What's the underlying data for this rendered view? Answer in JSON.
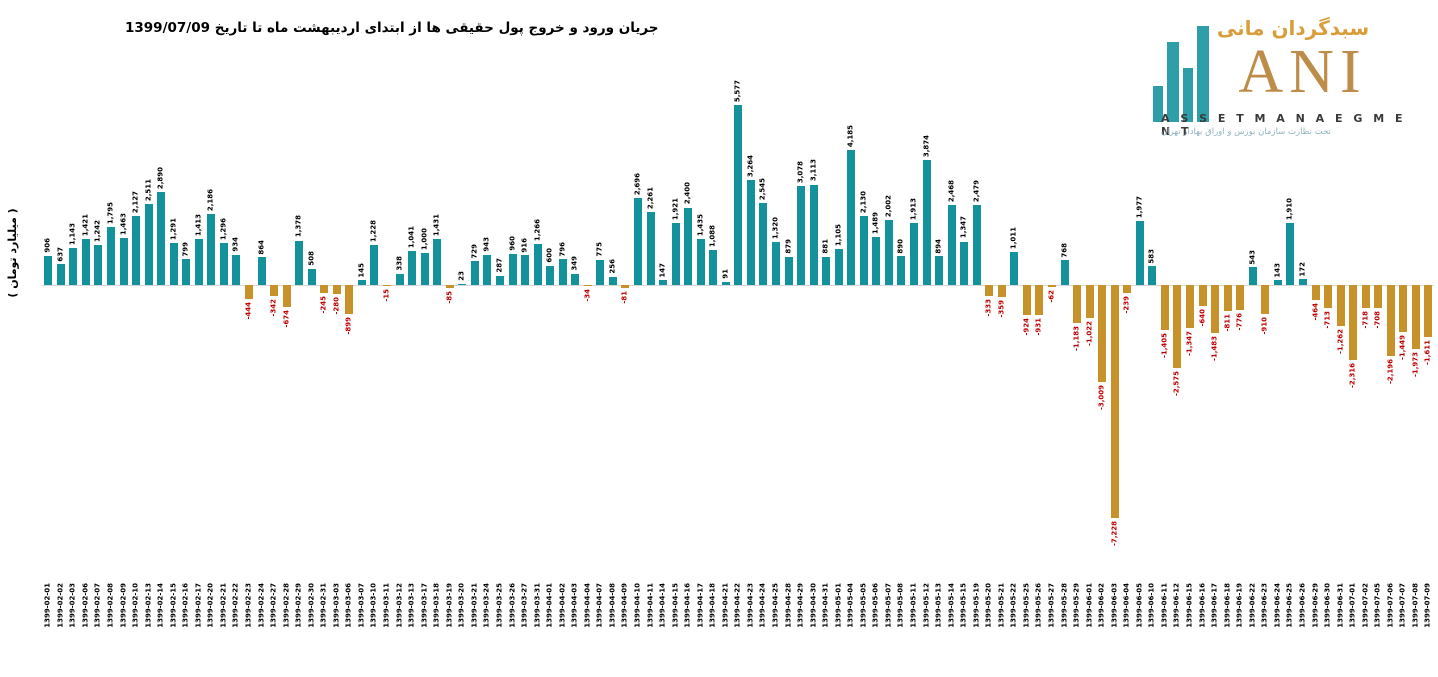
{
  "title": "جریان ورود و خروج پول حقیقی ها از ابتدای اردیبهشت ماه تا تاریخ 1399/07/09",
  "y_axis_label": "( میلیارد تومان )",
  "logo": {
    "brand_fa": "سبدگردان مانی",
    "brand_en": "ANI",
    "subtitle_en": "A S S E T M A N A E G M E N T",
    "tagline_fa": "تحت نظارت سازمان بورس و اوراق بهادار تهران"
  },
  "colors": {
    "positive_bar": "#13929b",
    "negative_bar": "#c8922a",
    "positive_label": "#000000",
    "negative_label": "#c00000",
    "axis_line": "#d6d6d6",
    "logo_gold": "#c austere",
    "logo_ani_gold": "#be8c49",
    "logo_brand_gold": "#d89e3c",
    "logo_teal": "#2e9fa8",
    "logo_tagline": "#8fb3be"
  },
  "chart_data": {
    "type": "bar",
    "title": "جریان ورود و خروج پول حقیقی ها از ابتدای اردیبهشت ماه تا تاریخ 1399/07/09",
    "xlabel": "",
    "ylabel": "( میلیارد تومان )",
    "ylim": [
      -7228,
      5577
    ],
    "grid": false,
    "legend": false,
    "value_labels": "rotated 90deg, black for positive, red for negative",
    "categories": [
      "1399-02-01",
      "1399-02-02",
      "1399-02-03",
      "1399-02-06",
      "1399-02-07",
      "1399-02-08",
      "1399-02-09",
      "1399-02-10",
      "1399-02-13",
      "1399-02-14",
      "1399-02-15",
      "1399-02-16",
      "1399-02-17",
      "1399-02-20",
      "1399-02-21",
      "1399-02-22",
      "1399-02-23",
      "1399-02-24",
      "1399-02-27",
      "1399-02-28",
      "1399-02-29",
      "1399-02-30",
      "1399-02-31",
      "1399-03-03",
      "1399-03-06",
      "1399-03-07",
      "1399-03-10",
      "1399-03-11",
      "1399-03-12",
      "1399-03-13",
      "1399-03-17",
      "1399-03-18",
      "1399-03-19",
      "1399-03-20",
      "1399-03-21",
      "1399-03-24",
      "1399-03-25",
      "1399-03-26",
      "1399-03-27",
      "1399-03-31",
      "1399-04-01",
      "1399-04-02",
      "1399-04-03",
      "1399-04-04",
      "1399-04-07",
      "1399-04-08",
      "1399-04-09",
      "1399-04-10",
      "1399-04-11",
      "1399-04-14",
      "1399-04-15",
      "1399-04-16",
      "1399-04-17",
      "1399-04-18",
      "1399-04-21",
      "1399-04-22",
      "1399-04-23",
      "1399-04-24",
      "1399-04-25",
      "1399-04-28",
      "1399-04-29",
      "1399-04-30",
      "1399-04-31",
      "1399-05-01",
      "1399-05-04",
      "1399-05-05",
      "1399-05-06",
      "1399-05-07",
      "1399-05-08",
      "1399-05-11",
      "1399-05-12",
      "1399-05-13",
      "1399-05-14",
      "1399-05-15",
      "1399-05-19",
      "1399-05-20",
      "1399-05-21",
      "1399-05-22",
      "1399-05-25",
      "1399-05-26",
      "1399-05-27",
      "1399-05-28",
      "1399-05-29",
      "1399-06-01",
      "1399-06-02",
      "1399-06-03",
      "1399-06-04",
      "1399-06-05",
      "1399-06-10",
      "1399-06-11",
      "1399-06-12",
      "1399-06-15",
      "1399-06-16",
      "1399-06-17",
      "1399-06-18",
      "1399-06-19",
      "1399-06-22",
      "1399-06-23",
      "1399-06-24",
      "1399-06-25",
      "1399-06-26",
      "1399-06-29",
      "1399-06-30",
      "1399-06-31",
      "1399-07-01",
      "1399-07-02",
      "1399-07-05",
      "1399-07-06",
      "1399-07-07",
      "1399-07-08",
      "1399-07-09"
    ],
    "values": [
      906,
      637,
      1143,
      1421,
      1242,
      1795,
      1463,
      2127,
      2511,
      2890,
      1291,
      799,
      1413,
      2186,
      1296,
      934,
      -444,
      864,
      -342,
      -674,
      1378,
      508,
      -245,
      -280,
      -899,
      145,
      1228,
      -15,
      338,
      1041,
      1000,
      1431,
      -85,
      23,
      729,
      943,
      287,
      960,
      916,
      1266,
      600,
      796,
      349,
      -34,
      775,
      256,
      -81,
      2696,
      2261,
      147,
      1921,
      2400,
      1435,
      1088,
      91,
      5577,
      3264,
      2545,
      1320,
      879,
      3078,
      3113,
      881,
      1105,
      4185,
      2130,
      1489,
      2002,
      890,
      1913,
      3874,
      894,
      2468,
      1347,
      2479,
      -333,
      -359,
      1011,
      -924,
      -931,
      -62,
      768,
      -1183,
      -1022,
      -3009,
      -7228,
      -239,
      1977,
      583,
      -1405,
      -2575,
      -1347,
      -640,
      -1483,
      -811,
      -776,
      543,
      -910,
      143,
      1910,
      172,
      -464,
      -713,
      -1262,
      -2316,
      -718,
      -708,
      -2196,
      -1449,
      -1973,
      -1611
    ]
  }
}
